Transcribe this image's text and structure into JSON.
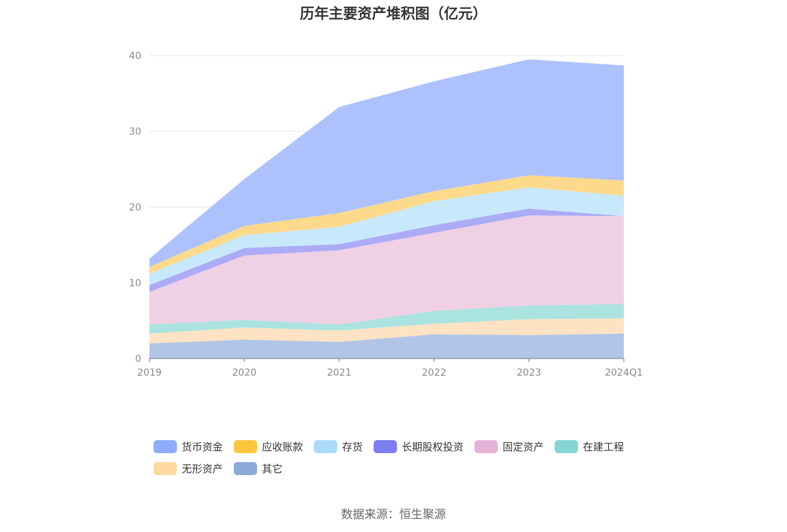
{
  "chart_data": {
    "type": "area",
    "stacked": true,
    "title": "历年主要资产堆积图（亿元）",
    "categories": [
      "2019",
      "2020",
      "2021",
      "2022",
      "2023",
      "2024Q1"
    ],
    "ylim": [
      0,
      40
    ],
    "yticks": [
      0,
      10,
      20,
      30,
      40
    ],
    "grid": true,
    "legend_position": "bottom",
    "series": [
      {
        "name": "其它",
        "color": "#aec2e6",
        "legend_color": "#8eaadb",
        "values": [
          2.0,
          2.5,
          2.2,
          3.2,
          3.1,
          3.3
        ]
      },
      {
        "name": "无形资产",
        "color": "#fde2c0",
        "legend_color": "#fdd9a0",
        "values": [
          1.3,
          1.6,
          1.5,
          1.4,
          2.1,
          2.0
        ]
      },
      {
        "name": "在建工程",
        "color": "#a5e1de",
        "legend_color": "#86d5d3",
        "values": [
          1.2,
          1.0,
          0.8,
          1.7,
          1.8,
          1.9
        ]
      },
      {
        "name": "固定资产",
        "color": "#eecee4",
        "legend_color": "#e6b3d8",
        "values": [
          4.3,
          8.5,
          9.8,
          10.3,
          11.9,
          11.6
        ]
      },
      {
        "name": "长期股权投资",
        "color": "#a6a7f6",
        "legend_color": "#7d7ef2",
        "values": [
          0.9,
          1.0,
          0.8,
          1.0,
          0.9,
          0.0
        ]
      },
      {
        "name": "存货",
        "color": "#c5e8fb",
        "legend_color": "#a9dcf9",
        "values": [
          1.5,
          1.7,
          2.3,
          3.2,
          2.8,
          2.7
        ]
      },
      {
        "name": "应收账款",
        "color": "#fdd785",
        "legend_color": "#fcc63c",
        "values": [
          0.9,
          1.2,
          1.8,
          1.3,
          1.6,
          2.0
        ]
      },
      {
        "name": "货币资金",
        "color": "#a9bffd",
        "legend_color": "#8eabfc",
        "values": [
          1.1,
          6.2,
          14.0,
          14.5,
          15.3,
          15.2
        ]
      }
    ]
  },
  "legend_order": [
    "货币资金",
    "应收账款",
    "存货",
    "长期股权投资",
    "固定资产",
    "在建工程",
    "无形资产",
    "其它"
  ],
  "source": "数据来源：恒生聚源"
}
